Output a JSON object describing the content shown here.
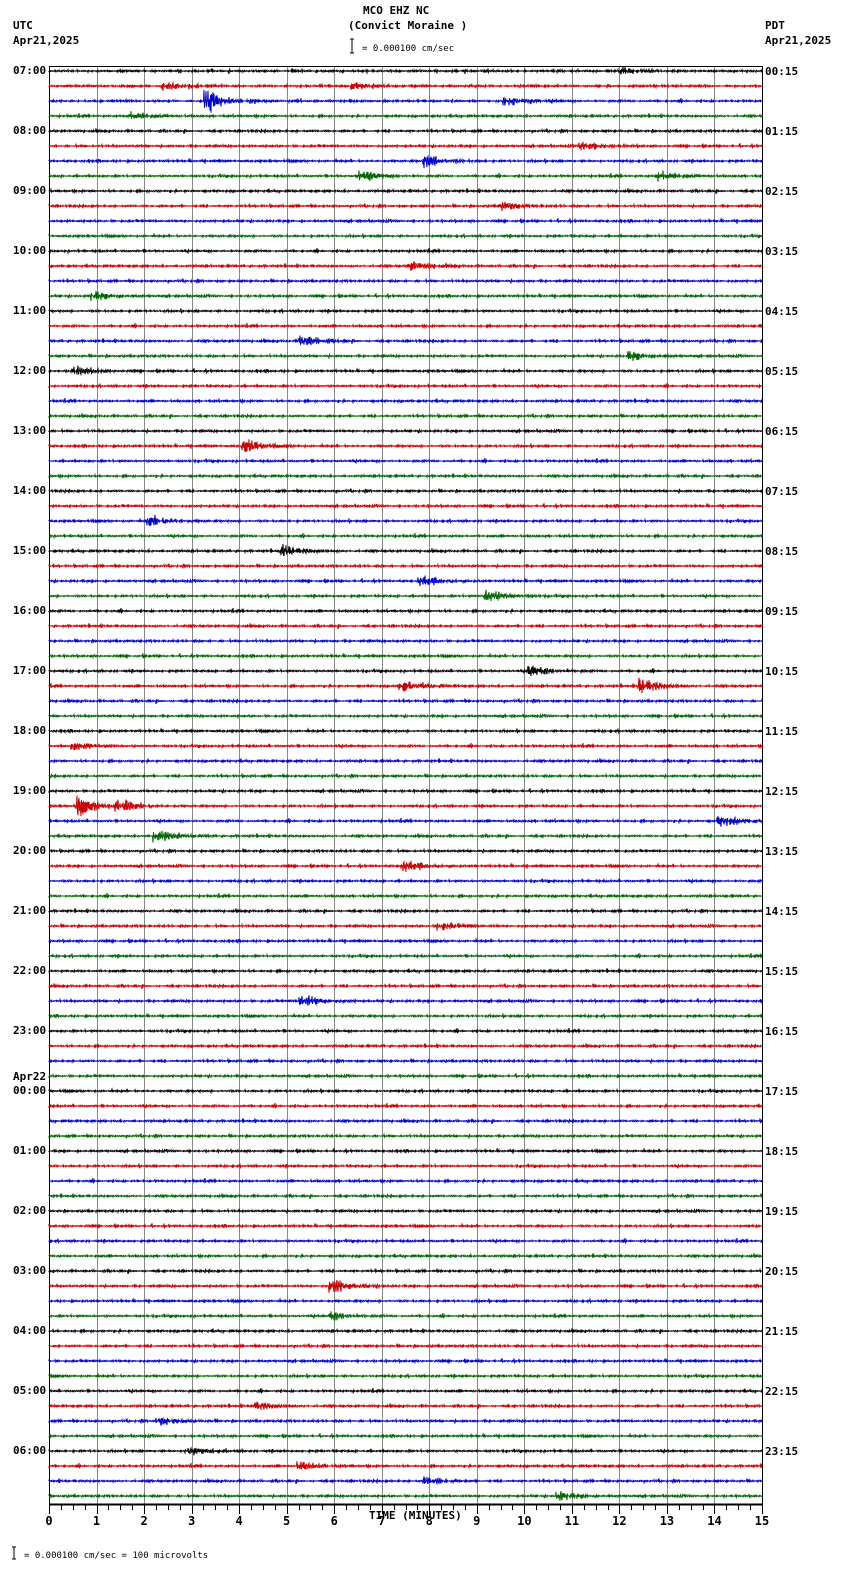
{
  "header": {
    "station": "MCO EHZ NC",
    "location": "(Convict Moraine )",
    "left_tz": "UTC",
    "left_date": "Apr21,2025",
    "right_tz": "PDT",
    "right_date": "Apr21,2025",
    "scale_text": "= 0.000100 cm/sec"
  },
  "footer": {
    "scale_text": "= 0.000100 cm/sec =     100 microvolts"
  },
  "chart_data": {
    "type": "line",
    "title": "MCO EHZ NC (Convict Moraine )",
    "xlabel": "TIME (MINUTES)",
    "ylabel": "",
    "xlim": [
      0,
      15
    ],
    "x_ticks": [
      "0",
      "1",
      "2",
      "3",
      "4",
      "5",
      "6",
      "7",
      "8",
      "9",
      "10",
      "11",
      "12",
      "13",
      "14",
      "15"
    ],
    "trace_colors": [
      "#000000",
      "#cc0000",
      "#0000cc",
      "#006600"
    ],
    "traces_per_hour": 4,
    "minutes_per_trace": 15,
    "left_labels": [
      "07:00",
      "08:00",
      "09:00",
      "10:00",
      "11:00",
      "12:00",
      "13:00",
      "14:00",
      "15:00",
      "16:00",
      "17:00",
      "18:00",
      "19:00",
      "20:00",
      "21:00",
      "22:00",
      "23:00",
      "00:00",
      "01:00",
      "02:00",
      "03:00",
      "04:00",
      "05:00",
      "06:00"
    ],
    "date_change_label": "Apr22",
    "date_change_index": 17,
    "right_labels": [
      "00:15",
      "01:15",
      "02:15",
      "03:15",
      "04:15",
      "05:15",
      "06:15",
      "07:15",
      "08:15",
      "09:15",
      "10:15",
      "11:15",
      "12:15",
      "13:15",
      "14:15",
      "15:15",
      "16:15",
      "17:15",
      "18:15",
      "19:15",
      "20:15",
      "21:15",
      "22:15",
      "23:15"
    ],
    "events": [
      {
        "trace": 0,
        "minute": 12.1,
        "amp": 4
      },
      {
        "trace": 1,
        "minute": 2.5,
        "amp": 4
      },
      {
        "trace": 1,
        "minute": 6.5,
        "amp": 3
      },
      {
        "trace": 2,
        "minute": 3.4,
        "amp": 10
      },
      {
        "trace": 2,
        "minute": 9.7,
        "amp": 4
      },
      {
        "trace": 3,
        "minute": 1.8,
        "amp": 4
      },
      {
        "trace": 5,
        "minute": 11.3,
        "amp": 5
      },
      {
        "trace": 6,
        "minute": 8.0,
        "amp": 6
      },
      {
        "trace": 7,
        "minute": 6.6,
        "amp": 5
      },
      {
        "trace": 7,
        "minute": 12.9,
        "amp": 5
      },
      {
        "trace": 9,
        "minute": 9.6,
        "amp": 4
      },
      {
        "trace": 13,
        "minute": 7.7,
        "amp": 4
      },
      {
        "trace": 15,
        "minute": 1.0,
        "amp": 4
      },
      {
        "trace": 18,
        "minute": 5.4,
        "amp": 5
      },
      {
        "trace": 19,
        "minute": 12.3,
        "amp": 4
      },
      {
        "trace": 20,
        "minute": 0.6,
        "amp": 4
      },
      {
        "trace": 25,
        "minute": 4.2,
        "amp": 6
      },
      {
        "trace": 30,
        "minute": 2.2,
        "amp": 5
      },
      {
        "trace": 32,
        "minute": 5.0,
        "amp": 5
      },
      {
        "trace": 34,
        "minute": 7.9,
        "amp": 4
      },
      {
        "trace": 35,
        "minute": 9.3,
        "amp": 6
      },
      {
        "trace": 40,
        "minute": 10.2,
        "amp": 5
      },
      {
        "trace": 41,
        "minute": 7.5,
        "amp": 5
      },
      {
        "trace": 41,
        "minute": 12.5,
        "amp": 8
      },
      {
        "trace": 45,
        "minute": 0.6,
        "amp": 4
      },
      {
        "trace": 49,
        "minute": 0.7,
        "amp": 9
      },
      {
        "trace": 49,
        "minute": 1.5,
        "amp": 6
      },
      {
        "trace": 50,
        "minute": 14.2,
        "amp": 5
      },
      {
        "trace": 51,
        "minute": 2.3,
        "amp": 6
      },
      {
        "trace": 53,
        "minute": 7.5,
        "amp": 5
      },
      {
        "trace": 57,
        "minute": 8.3,
        "amp": 4
      },
      {
        "trace": 62,
        "minute": 5.4,
        "amp": 6
      },
      {
        "trace": 81,
        "minute": 6.0,
        "amp": 7
      },
      {
        "trace": 83,
        "minute": 6.0,
        "amp": 4
      },
      {
        "trace": 89,
        "minute": 4.4,
        "amp": 4
      },
      {
        "trace": 90,
        "minute": 2.4,
        "amp": 4
      },
      {
        "trace": 92,
        "minute": 3.0,
        "amp": 4
      },
      {
        "trace": 93,
        "minute": 5.3,
        "amp": 4
      },
      {
        "trace": 94,
        "minute": 8.0,
        "amp": 4
      },
      {
        "trace": 95,
        "minute": 10.8,
        "amp": 4
      }
    ]
  }
}
